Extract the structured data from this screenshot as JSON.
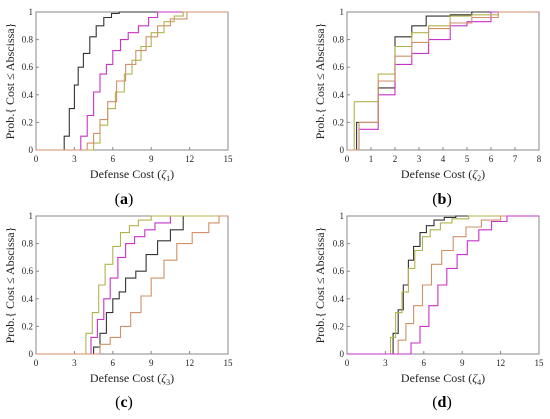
{
  "figure": {
    "panels": [
      {
        "caption_open": "(",
        "caption_letter": "a",
        "caption_close": ")"
      },
      {
        "caption_open": "(",
        "caption_letter": "b",
        "caption_close": ")"
      },
      {
        "caption_open": "(",
        "caption_letter": "c",
        "caption_close": ")"
      },
      {
        "caption_open": "(",
        "caption_letter": "d",
        "caption_close": ")"
      }
    ]
  },
  "colors": {
    "black": "#333333",
    "magenta": "#c832c8",
    "olive": "#b3b34d",
    "tan": "#d0906a"
  },
  "chart_data": [
    {
      "type": "line",
      "step": true,
      "xlabel_prefix": "Defense Cost (",
      "xlabel_symbol": "ζ",
      "xlabel_sub": "1",
      "xlabel_suffix": ")",
      "ylabel": "Prob.{ Cost ≤ Abscissa}",
      "xlim": [
        0,
        15
      ],
      "ylim": [
        0,
        1
      ],
      "xticks": [
        0,
        3,
        6,
        9,
        12,
        15
      ],
      "yticks": [
        0,
        0.2,
        0.4,
        0.6,
        0.8,
        1
      ],
      "ytick_labels": [
        "0",
        "0.2",
        "0.4",
        "0.6",
        "0.8",
        "1"
      ],
      "series": [
        {
          "color": "black",
          "x": [
            0,
            1.8,
            2.2,
            2.6,
            3.0,
            3.3,
            3.7,
            4.2,
            4.7,
            5.3,
            5.9,
            6.5,
            15
          ],
          "y": [
            0,
            0,
            0.1,
            0.3,
            0.47,
            0.6,
            0.7,
            0.82,
            0.9,
            0.96,
            0.99,
            1,
            1
          ]
        },
        {
          "color": "magenta",
          "x": [
            0,
            3.0,
            3.5,
            4.0,
            4.5,
            5.0,
            5.5,
            6.0,
            6.6,
            7.2,
            8.0,
            8.8,
            9.5,
            15
          ],
          "y": [
            0,
            0,
            0.1,
            0.25,
            0.42,
            0.55,
            0.62,
            0.72,
            0.8,
            0.85,
            0.9,
            0.96,
            1,
            1
          ]
        },
        {
          "color": "olive",
          "x": [
            0,
            4.0,
            4.5,
            5.0,
            5.6,
            6.2,
            6.9,
            7.5,
            8.2,
            9.0,
            10.0,
            10.8,
            11.5,
            15
          ],
          "y": [
            0,
            0,
            0.05,
            0.18,
            0.3,
            0.42,
            0.55,
            0.65,
            0.75,
            0.85,
            0.93,
            0.97,
            1,
            1
          ]
        },
        {
          "color": "tan",
          "x": [
            0,
            3.5,
            4.0,
            4.5,
            5.0,
            5.6,
            6.3,
            7.0,
            7.8,
            8.6,
            9.5,
            10.5,
            11.8,
            15
          ],
          "y": [
            0,
            0,
            0.05,
            0.12,
            0.22,
            0.35,
            0.5,
            0.62,
            0.72,
            0.82,
            0.9,
            0.95,
            1,
            1
          ]
        }
      ]
    },
    {
      "type": "line",
      "step": true,
      "xlabel_prefix": "Defense Cost (",
      "xlabel_symbol": "ζ",
      "xlabel_sub": "2",
      "xlabel_suffix": ")",
      "ylabel": "Prob.{ Cost ≤ Abscissa}",
      "xlim": [
        0,
        8
      ],
      "ylim": [
        0,
        1
      ],
      "xticks": [
        0,
        1,
        2,
        3,
        4,
        5,
        6,
        7,
        8
      ],
      "yticks": [
        0,
        0.2,
        0.4,
        0.6,
        0.8,
        1
      ],
      "ytick_labels": [
        "0",
        "0.2",
        "0.4",
        "0.6",
        "0.8",
        "1"
      ],
      "series": [
        {
          "color": "black",
          "x": [
            0,
            0.2,
            0.4,
            1.3,
            2.0,
            2.7,
            3.3,
            4.3,
            5.2,
            8
          ],
          "y": [
            0,
            0,
            0.2,
            0.45,
            0.82,
            0.9,
            0.97,
            0.98,
            1,
            1
          ]
        },
        {
          "color": "magenta",
          "x": [
            0,
            0.3,
            0.5,
            1.3,
            2.0,
            2.7,
            3.4,
            4.3,
            5.0,
            6.0,
            8
          ],
          "y": [
            0,
            0,
            0.15,
            0.4,
            0.62,
            0.7,
            0.8,
            0.9,
            0.93,
            1,
            1
          ]
        },
        {
          "color": "olive",
          "x": [
            0,
            0.2,
            0.3,
            1.3,
            2.0,
            2.7,
            3.4,
            4.3,
            5.2,
            6.3,
            8
          ],
          "y": [
            0,
            0,
            0.35,
            0.55,
            0.75,
            0.85,
            0.9,
            0.97,
            0.98,
            1,
            1
          ]
        },
        {
          "color": "tan",
          "x": [
            0,
            0.3,
            0.5,
            1.3,
            2.0,
            2.7,
            3.4,
            4.3,
            5.2,
            6.3,
            8
          ],
          "y": [
            0,
            0,
            0.2,
            0.5,
            0.68,
            0.78,
            0.88,
            0.92,
            0.96,
            1,
            1
          ]
        }
      ]
    },
    {
      "type": "line",
      "step": true,
      "xlabel_prefix": "Defense Cost (",
      "xlabel_symbol": "ζ",
      "xlabel_sub": "3",
      "xlabel_suffix": ")",
      "ylabel": "Prob.{ Cost ≤ Abscissa}",
      "xlim": [
        0,
        15
      ],
      "ylim": [
        0,
        1
      ],
      "xticks": [
        0,
        3,
        6,
        9,
        12,
        15
      ],
      "yticks": [
        0,
        0.2,
        0.4,
        0.6,
        0.8,
        1
      ],
      "ytick_labels": [
        "0",
        "0.2",
        "0.4",
        "0.6",
        "0.8",
        "1"
      ],
      "series": [
        {
          "color": "black",
          "x": [
            0,
            4.0,
            4.5,
            5.0,
            5.5,
            6.0,
            6.5,
            7.0,
            7.8,
            8.6,
            9.5,
            10.5,
            11.5,
            15
          ],
          "y": [
            0,
            0,
            0.05,
            0.15,
            0.3,
            0.4,
            0.45,
            0.55,
            0.6,
            0.72,
            0.82,
            0.9,
            1,
            1
          ]
        },
        {
          "color": "magenta",
          "x": [
            0,
            3.8,
            4.3,
            4.8,
            5.3,
            5.8,
            6.4,
            7.0,
            7.7,
            8.5,
            9.3,
            10.5,
            15
          ],
          "y": [
            0,
            0,
            0.12,
            0.25,
            0.4,
            0.55,
            0.7,
            0.8,
            0.85,
            0.9,
            0.95,
            1,
            1
          ]
        },
        {
          "color": "olive",
          "x": [
            0,
            3.4,
            3.9,
            4.4,
            4.9,
            5.4,
            6.0,
            6.6,
            7.3,
            8.0,
            9.0,
            15
          ],
          "y": [
            0,
            0,
            0.15,
            0.3,
            0.5,
            0.65,
            0.78,
            0.88,
            0.93,
            0.97,
            1,
            1
          ]
        },
        {
          "color": "tan",
          "x": [
            0,
            4.3,
            5.0,
            5.8,
            6.6,
            7.4,
            8.2,
            9.0,
            10.0,
            11.0,
            12.2,
            13.5,
            14.3,
            15
          ],
          "y": [
            0,
            0,
            0.07,
            0.12,
            0.2,
            0.3,
            0.42,
            0.55,
            0.68,
            0.8,
            0.88,
            0.95,
            1,
            1
          ]
        }
      ]
    },
    {
      "type": "line",
      "step": true,
      "xlabel_prefix": "Defense Cost (",
      "xlabel_symbol": "ζ",
      "xlabel_sub": "4",
      "xlabel_suffix": ")",
      "ylabel": "Prob.{ Cost ≤ Abscissa}",
      "xlim": [
        0,
        15
      ],
      "ylim": [
        0,
        1
      ],
      "xticks": [
        0,
        3,
        6,
        9,
        12,
        15
      ],
      "yticks": [
        0,
        0.2,
        0.4,
        0.6,
        0.8,
        1
      ],
      "ytick_labels": [
        "0",
        "0.2",
        "0.4",
        "0.6",
        "0.8",
        "1"
      ],
      "series": [
        {
          "color": "black",
          "x": [
            0,
            3.2,
            3.6,
            4.0,
            4.4,
            4.8,
            5.2,
            5.7,
            6.2,
            6.8,
            7.6,
            8.5,
            15
          ],
          "y": [
            0,
            0,
            0.15,
            0.32,
            0.5,
            0.68,
            0.78,
            0.88,
            0.93,
            0.97,
            0.99,
            1,
            1
          ]
        },
        {
          "color": "olive",
          "x": [
            0,
            3.0,
            3.4,
            3.8,
            4.3,
            4.8,
            5.3,
            5.9,
            6.5,
            7.3,
            8.2,
            9.5,
            15
          ],
          "y": [
            0,
            0,
            0.12,
            0.3,
            0.45,
            0.62,
            0.75,
            0.85,
            0.9,
            0.95,
            0.98,
            1,
            1
          ]
        },
        {
          "color": "tan",
          "x": [
            0,
            3.5,
            4.0,
            4.6,
            5.2,
            5.9,
            6.6,
            7.4,
            8.3,
            9.3,
            10.5,
            12.0,
            15
          ],
          "y": [
            0,
            0,
            0.1,
            0.22,
            0.35,
            0.5,
            0.65,
            0.75,
            0.85,
            0.92,
            0.97,
            1,
            1
          ]
        },
        {
          "color": "magenta",
          "x": [
            0,
            4.3,
            5.0,
            5.7,
            6.4,
            7.1,
            7.8,
            8.6,
            9.4,
            10.3,
            11.3,
            12.5,
            15
          ],
          "y": [
            0,
            0,
            0.08,
            0.2,
            0.35,
            0.5,
            0.62,
            0.72,
            0.82,
            0.9,
            0.96,
            1,
            1
          ]
        }
      ]
    }
  ]
}
